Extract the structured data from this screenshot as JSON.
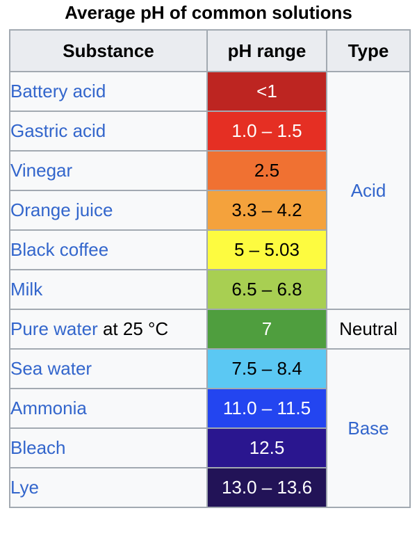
{
  "caption": "Average pH of common solutions",
  "headers": {
    "substance": "Substance",
    "ph_range": "pH range",
    "type": "Type"
  },
  "rows": [
    {
      "substance": "Battery acid",
      "suffix": "",
      "ph": "<1",
      "bg": "#bd2521",
      "fg": "#ffffff"
    },
    {
      "substance": "Gastric acid",
      "suffix": "",
      "ph": "1.0 – 1.5",
      "bg": "#e52f23",
      "fg": "#ffffff"
    },
    {
      "substance": "Vinegar",
      "suffix": "",
      "ph": "2.5",
      "bg": "#f07132",
      "fg": "#000000"
    },
    {
      "substance": "Orange juice",
      "suffix": "",
      "ph": "3.3 – 4.2",
      "bg": "#f4a23c",
      "fg": "#000000"
    },
    {
      "substance": "Black coffee",
      "suffix": "",
      "ph": "5 – 5.03",
      "bg": "#fdfb40",
      "fg": "#000000"
    },
    {
      "substance": "Milk",
      "suffix": "",
      "ph": "6.5 – 6.8",
      "bg": "#a8cf52",
      "fg": "#000000"
    },
    {
      "substance": "Pure water",
      "suffix": " at 25 °C",
      "ph": "7",
      "bg": "#4f9e3e",
      "fg": "#ffffff"
    },
    {
      "substance": "Sea water",
      "suffix": "",
      "ph": "7.5 – 8.4",
      "bg": "#5bc8f3",
      "fg": "#000000"
    },
    {
      "substance": "Ammonia",
      "suffix": "",
      "ph": "11.0 – 11.5",
      "bg": "#2345f0",
      "fg": "#ffffff"
    },
    {
      "substance": "Bleach",
      "suffix": "",
      "ph": "12.5",
      "bg": "#2a168f",
      "fg": "#ffffff"
    },
    {
      "substance": "Lye",
      "suffix": "",
      "ph": "13.0 – 13.6",
      "bg": "#221357",
      "fg": "#ffffff"
    }
  ],
  "types": [
    {
      "label": "Acid",
      "span": 6,
      "link": true
    },
    {
      "label": "Neutral",
      "span": 1,
      "link": false
    },
    {
      "label": "Base",
      "span": 4,
      "link": true
    }
  ]
}
